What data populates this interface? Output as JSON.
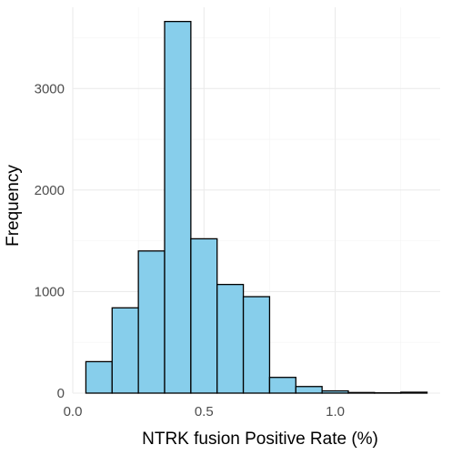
{
  "chart_data": {
    "type": "bar",
    "xlabel": "NTRK fusion Positive Rate (%)",
    "ylabel": "Frequency",
    "xlim": [
      0.0,
      1.4
    ],
    "ylim": [
      0,
      3800
    ],
    "x_ticks": [
      0.0,
      0.5,
      1.0
    ],
    "x_tick_labels": [
      "0.0",
      "0.5",
      "1.0"
    ],
    "y_ticks": [
      0,
      1000,
      2000,
      3000
    ],
    "y_tick_labels": [
      "0",
      "1000",
      "2000",
      "3000"
    ],
    "grid": true,
    "bin_width": 0.1,
    "bins": [
      {
        "x0": 0.05,
        "x1": 0.15,
        "count": 310
      },
      {
        "x0": 0.15,
        "x1": 0.25,
        "count": 840
      },
      {
        "x0": 0.25,
        "x1": 0.35,
        "count": 1400
      },
      {
        "x0": 0.35,
        "x1": 0.45,
        "count": 3660
      },
      {
        "x0": 0.45,
        "x1": 0.55,
        "count": 1520
      },
      {
        "x0": 0.55,
        "x1": 0.65,
        "count": 1070
      },
      {
        "x0": 0.65,
        "x1": 0.75,
        "count": 950
      },
      {
        "x0": 0.75,
        "x1": 0.85,
        "count": 155
      },
      {
        "x0": 0.85,
        "x1": 0.95,
        "count": 65
      },
      {
        "x0": 0.95,
        "x1": 1.05,
        "count": 22
      },
      {
        "x0": 1.05,
        "x1": 1.15,
        "count": 6
      },
      {
        "x0": 1.15,
        "x1": 1.25,
        "count": 3
      },
      {
        "x0": 1.25,
        "x1": 1.35,
        "count": 9
      }
    ],
    "bar_fill": "#87ceeb",
    "bar_outline": "#000000"
  }
}
